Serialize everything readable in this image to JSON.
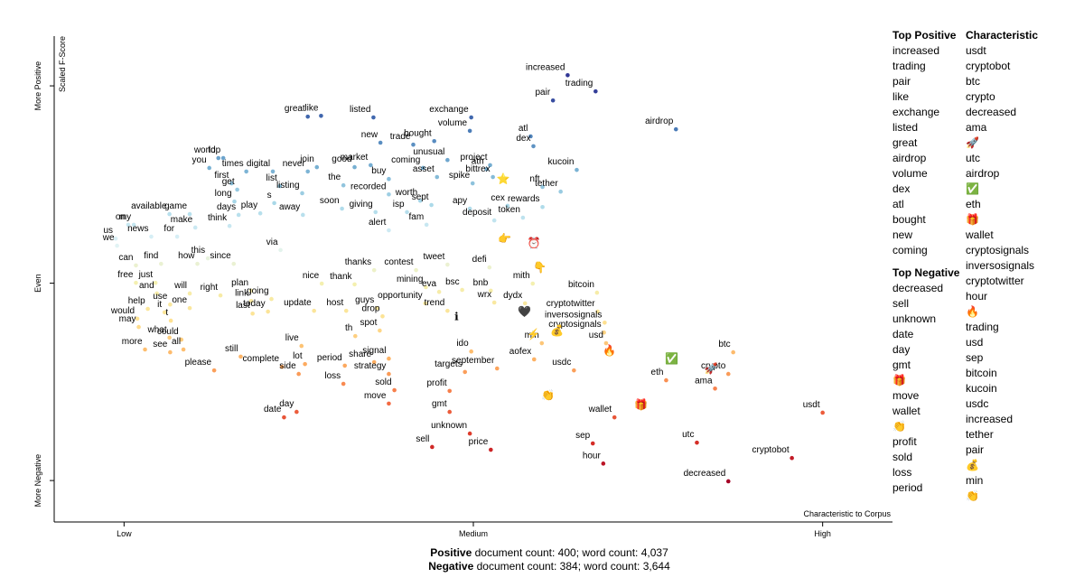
{
  "chart_data": {
    "type": "scatter",
    "x_label": "Characteristic to Corpus",
    "y_label": "Scaled F-Score",
    "xlim": [
      -0.1,
      1.1
    ],
    "ylim": [
      -0.105,
      1.126
    ],
    "xticks": [
      {
        "value": 0,
        "label": "Low"
      },
      {
        "value": 0.5,
        "label": "Medium"
      },
      {
        "value": 1,
        "label": "High"
      }
    ],
    "yticks": [
      {
        "value": 0,
        "label": "More Negative"
      },
      {
        "value": 0.5,
        "label": "Even"
      },
      {
        "value": 1,
        "label": "More Positive"
      }
    ],
    "colormap": [
      "#a50026",
      "#d73027",
      "#f46d43",
      "#fdae61",
      "#fee090",
      "#f4f0b0",
      "#e0f3f8",
      "#abd9e9",
      "#74add1",
      "#4575b4",
      "#313695"
    ],
    "terms": [
      "increased",
      "trading",
      "pair",
      "airdrop",
      "great",
      "like",
      "listed",
      "exchange",
      "volume",
      "bought",
      "atl",
      "dex",
      "new",
      "trade",
      "unusual",
      "world",
      "top",
      "you",
      "join",
      "market",
      "good",
      "coming",
      "project",
      "kucoin",
      "times",
      "digital",
      "never",
      "ath",
      "bittrex",
      "buy",
      "the",
      "asset",
      "spike",
      "nft",
      "first",
      "get",
      "list",
      "listing",
      "recorded",
      "worth",
      "tether",
      "long",
      "s",
      "sept",
      "cex",
      "apy",
      "rewards",
      "available",
      "game",
      "days",
      "play",
      "away",
      "soon",
      "giving",
      "isp",
      "deposit",
      "token",
      "on",
      "my",
      "make",
      "think",
      "fam",
      "alert",
      "news",
      "for",
      "us",
      "we",
      "via",
      "can",
      "find",
      "how",
      "this",
      "since",
      "thanks",
      "contest",
      "tweet",
      "defi",
      "free",
      "just",
      "and",
      "nice",
      "thank",
      "mining",
      "eva",
      "bsc",
      "bnb",
      "mith",
      "plan",
      "will",
      "right",
      "link",
      "going",
      "use",
      "one",
      "help",
      "guys",
      "opportunity",
      "wrx",
      "dydx",
      "bitcoin",
      "it",
      "today",
      "update",
      "host",
      "last",
      "trend",
      "cryptotwitter",
      "would",
      "t",
      "drop",
      "inversosignals",
      "may",
      "spot",
      "cryptosignals",
      "usd",
      "th",
      "min",
      "what",
      "could",
      "live",
      "more",
      "see",
      "all",
      "ido",
      "btc",
      "still",
      "signal",
      "aofex",
      "lot",
      "share",
      "complete",
      "period",
      "september",
      "please",
      "side",
      "strategy",
      "usdc",
      "crypto",
      "targets",
      "eth",
      "loss",
      "sold",
      "ama",
      "profit",
      "move",
      "day",
      "gmt",
      "wallet",
      "date",
      "usdt",
      "unknown",
      "sep",
      "utc",
      "sell",
      "price",
      "cryptobot",
      "hour",
      "decreased"
    ],
    "x": [
      0.635,
      0.675,
      0.614,
      0.79,
      0.263,
      0.282,
      0.357,
      0.497,
      0.495,
      0.444,
      0.582,
      0.586,
      0.367,
      0.414,
      0.463,
      0.135,
      0.142,
      0.122,
      0.276,
      0.353,
      0.33,
      0.428,
      0.524,
      0.648,
      0.175,
      0.213,
      0.263,
      0.519,
      0.528,
      0.379,
      0.314,
      0.448,
      0.499,
      0.599,
      0.154,
      0.162,
      0.223,
      0.255,
      0.379,
      0.424,
      0.625,
      0.158,
      0.215,
      0.44,
      0.549,
      0.495,
      0.599,
      0.065,
      0.094,
      0.164,
      0.195,
      0.256,
      0.312,
      0.36,
      0.405,
      0.53,
      0.571,
      0.006,
      0.014,
      0.102,
      0.151,
      0.433,
      0.379,
      0.039,
      0.076,
      -0.012,
      -0.01,
      0.224,
      0.017,
      0.053,
      0.105,
      0.12,
      0.157,
      0.358,
      0.418,
      0.463,
      0.523,
      0.017,
      0.045,
      0.047,
      0.283,
      0.33,
      0.432,
      0.451,
      0.484,
      0.525,
      0.585,
      0.182,
      0.094,
      0.138,
      0.182,
      0.211,
      0.066,
      0.094,
      0.034,
      0.362,
      0.431,
      0.53,
      0.574,
      0.677,
      0.058,
      0.206,
      0.272,
      0.318,
      0.184,
      0.463,
      0.678,
      0.019,
      0.067,
      0.37,
      0.688,
      0.021,
      0.366,
      0.687,
      0.69,
      0.331,
      0.598,
      0.065,
      0.082,
      0.254,
      0.03,
      0.066,
      0.085,
      0.497,
      0.872,
      0.167,
      0.379,
      0.587,
      0.259,
      0.358,
      0.226,
      0.316,
      0.534,
      0.129,
      0.25,
      0.379,
      0.644,
      0.865,
      0.488,
      0.776,
      0.314,
      0.387,
      0.846,
      0.466,
      0.379,
      0.247,
      0.466,
      0.702,
      0.229,
      1.0,
      0.495,
      0.671,
      0.82,
      0.441,
      0.525,
      0.956,
      0.686,
      0.865
    ],
    "y": [
      1.027,
      0.986,
      0.963,
      0.89,
      0.922,
      0.924,
      0.92,
      0.92,
      0.886,
      0.86,
      0.872,
      0.847,
      0.856,
      0.851,
      0.812,
      0.817,
      0.817,
      0.792,
      0.794,
      0.799,
      0.794,
      0.792,
      0.799,
      0.787,
      0.783,
      0.783,
      0.783,
      0.789,
      0.769,
      0.764,
      0.748,
      0.769,
      0.753,
      0.744,
      0.753,
      0.737,
      0.746,
      0.728,
      0.725,
      0.709,
      0.732,
      0.707,
      0.703,
      0.698,
      0.696,
      0.689,
      0.693,
      0.675,
      0.675,
      0.673,
      0.677,
      0.673,
      0.689,
      0.68,
      0.68,
      0.659,
      0.666,
      0.648,
      0.648,
      0.641,
      0.645,
      0.648,
      0.634,
      0.618,
      0.618,
      0.613,
      0.595,
      0.584,
      0.545,
      0.549,
      0.549,
      0.563,
      0.549,
      0.533,
      0.533,
      0.547,
      0.54,
      0.501,
      0.501,
      0.474,
      0.499,
      0.497,
      0.49,
      0.478,
      0.483,
      0.481,
      0.499,
      0.481,
      0.474,
      0.469,
      0.455,
      0.46,
      0.446,
      0.437,
      0.435,
      0.437,
      0.449,
      0.451,
      0.449,
      0.476,
      0.426,
      0.428,
      0.43,
      0.43,
      0.423,
      0.43,
      0.428,
      0.41,
      0.405,
      0.416,
      0.4,
      0.389,
      0.38,
      0.375,
      0.348,
      0.366,
      0.348,
      0.362,
      0.357,
      0.341,
      0.332,
      0.325,
      0.332,
      0.327,
      0.325,
      0.314,
      0.309,
      0.307,
      0.295,
      0.3,
      0.288,
      0.291,
      0.284,
      0.279,
      0.27,
      0.27,
      0.279,
      0.27,
      0.275,
      0.254,
      0.245,
      0.229,
      0.233,
      0.227,
      0.195,
      0.174,
      0.174,
      0.16,
      0.16,
      0.172,
      0.119,
      0.094,
      0.096,
      0.085,
      0.078,
      0.057,
      0.043,
      -0.002
    ],
    "emoji": {
      "terms": [
        "⭐",
        "👉",
        "⏰",
        "👇",
        "🖤",
        "ℹ",
        "⚡",
        "💰",
        "🔥",
        "✅",
        "🚀",
        "🎁",
        "👏"
      ],
      "x": [
        0.543,
        0.545,
        0.587,
        0.595,
        0.573,
        0.476,
        0.586,
        0.62,
        0.695,
        0.784,
        0.84,
        0.74,
        0.607
      ],
      "y": [
        0.764,
        0.613,
        0.602,
        0.54,
        0.428,
        0.416,
        0.371,
        0.38,
        0.33,
        0.309,
        0.284,
        0.192,
        0.217
      ]
    }
  },
  "top_positive": {
    "title": "Top Positive",
    "terms": [
      "increased",
      "trading",
      "pair",
      "like",
      "exchange",
      "listed",
      "great",
      "airdrop",
      "volume",
      "dex",
      "atl",
      "bought",
      "new",
      "coming"
    ]
  },
  "top_negative": {
    "title": "Top Negative",
    "terms": [
      "decreased",
      "sell",
      "unknown",
      "date",
      "day",
      "gmt",
      "🎁",
      "move",
      "wallet",
      "👏",
      "profit",
      "sold",
      "loss",
      "period"
    ]
  },
  "characteristic": {
    "title": "Characteristic",
    "terms": [
      "usdt",
      "cryptobot",
      "btc",
      "crypto",
      "decreased",
      "ama",
      "🚀",
      "utc",
      "airdrop",
      "✅",
      "eth",
      "🎁",
      "wallet",
      "cryptosignals",
      "inversosignals",
      "cryptotwitter",
      "hour",
      "🔥",
      "trading",
      "usd",
      "sep",
      "bitcoin",
      "kucoin",
      "usdc",
      "increased",
      "tether",
      "pair",
      "💰",
      "min",
      "👏"
    ]
  },
  "footer": [
    {
      "category": "Positive",
      "text": "document count: 400; word count: 4,037"
    },
    {
      "category": "Negative",
      "text": "document count: 384; word count: 3,644"
    }
  ]
}
